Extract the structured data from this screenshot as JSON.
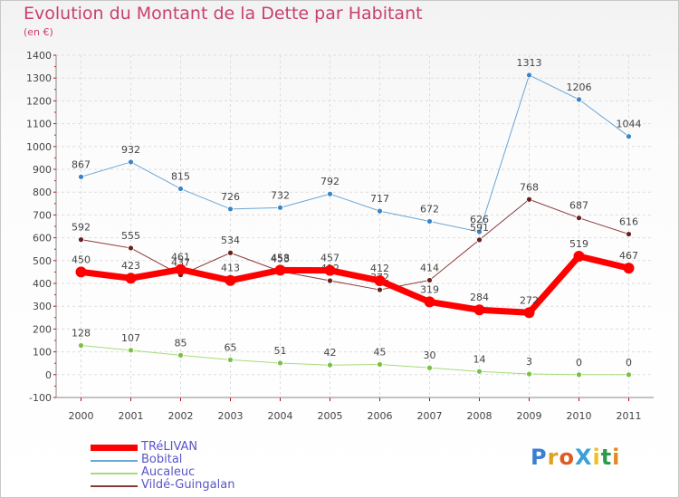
{
  "header": {
    "title": "Evolution du Montant de la Dette par Habitant",
    "subtitle": "(en €)"
  },
  "brand": {
    "text": "ProXiti"
  },
  "colors": {
    "title": "#c8416b",
    "axis_label": "#5a56c8",
    "axis_tick": "#cc0000",
    "grid": "#dddddd"
  },
  "chart_data": {
    "type": "line",
    "title": "Evolution du Montant de la Dette par Habitant",
    "subtitle": "(en €)",
    "xlabel": "",
    "ylabel": "",
    "ylim": [
      -100,
      1400
    ],
    "y_ticks": [
      -100,
      0,
      100,
      200,
      300,
      400,
      500,
      600,
      700,
      800,
      900,
      1000,
      1100,
      1200,
      1300,
      1400
    ],
    "categories": [
      "2000",
      "2001",
      "2002",
      "2003",
      "2004",
      "2005",
      "2006",
      "2007",
      "2008",
      "2009",
      "2010",
      "2011"
    ],
    "grid": true,
    "legend_position": "bottom-left",
    "series": [
      {
        "name": "Bobital",
        "color": "#6aa6d6",
        "marker": "#3b84c4",
        "width": 1,
        "values": [
          867,
          932,
          815,
          726,
          732,
          792,
          717,
          672,
          626,
          1313,
          1206,
          1044
        ]
      },
      {
        "name": "Vildé-Guingalan",
        "color": "#8b3a3a",
        "marker": "#6b1f1f",
        "width": 1,
        "values": [
          592,
          555,
          437,
          534,
          453,
          412,
          372,
          414,
          591,
          768,
          687,
          616
        ]
      },
      {
        "name": "Aucaleuc",
        "color": "#a6dc7a",
        "marker": "#7ac043",
        "width": 1,
        "values": [
          128,
          107,
          85,
          65,
          51,
          42,
          45,
          30,
          14,
          3,
          0,
          0
        ]
      },
      {
        "name": "TRéLIVAN",
        "color": "#ff0000",
        "marker": "#ff0000",
        "width": 7,
        "values": [
          450,
          423,
          461,
          413,
          458,
          457,
          412,
          319,
          284,
          272,
          519,
          467
        ]
      }
    ],
    "legend": [
      "TRéLIVAN",
      "Bobital",
      "Aucaleuc",
      "Vildé-Guingalan"
    ]
  }
}
